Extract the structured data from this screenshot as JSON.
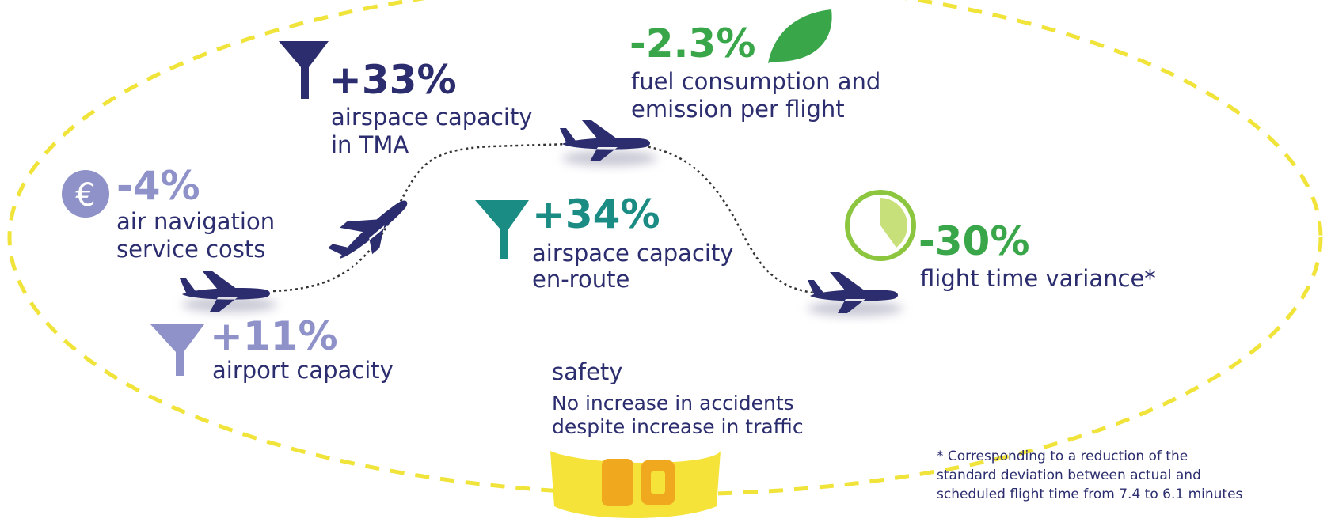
{
  "items": [
    {
      "value": "+33%",
      "lines": [
        "airspace capacity",
        "in TMA"
      ]
    },
    {
      "value": "-2.3%",
      "lines": [
        "fuel consumption and",
        "emission per flight"
      ]
    },
    {
      "value": "-4%",
      "icon": "€",
      "lines": [
        "air navigation",
        "service costs"
      ]
    },
    {
      "value": "+34%",
      "lines": [
        "airspace capacity",
        "en-route"
      ]
    },
    {
      "value": "-30%",
      "lines": [
        "flight time variance*"
      ]
    },
    {
      "value": "+11%",
      "lines": [
        "airport capacity"
      ]
    },
    {
      "value": "safety",
      "lines": [
        "No increase in accidents",
        "despite increase in traffic"
      ]
    }
  ],
  "footnote": [
    "* Corresponding to a reduction of the",
    "standard deviation between actual and",
    "scheduled flight time from 7.4 to 6.1 minutes"
  ]
}
